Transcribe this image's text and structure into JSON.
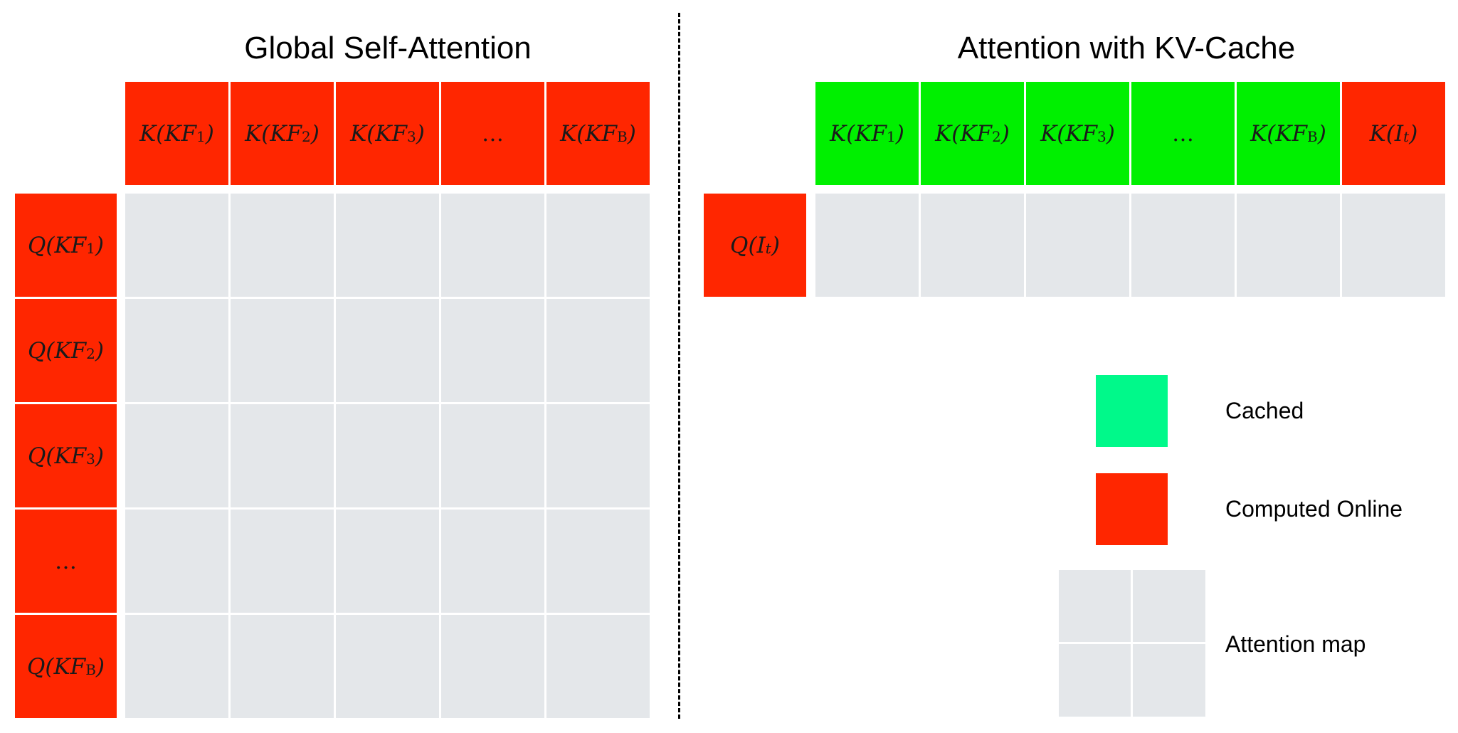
{
  "colors": {
    "computed_online": "#ff2600",
    "cached_key": "#00f000",
    "cached_legend": "#00f98a",
    "attention_map": "#e4e7ea"
  },
  "left_panel": {
    "title": "Global Self-Attention",
    "key_headers": [
      {
        "pre": "K(KF",
        "sub": "1",
        "post": ")"
      },
      {
        "pre": "K(KF",
        "sub": "2",
        "post": ")"
      },
      {
        "pre": "K(KF",
        "sub": "3",
        "post": ")"
      },
      {
        "pre": "…",
        "sub": "",
        "post": ""
      },
      {
        "pre": "K(KF",
        "sub": "B",
        "post": ")"
      }
    ],
    "query_headers": [
      {
        "pre": "Q(KF",
        "sub": "1",
        "post": ")"
      },
      {
        "pre": "Q(KF",
        "sub": "2",
        "post": ")"
      },
      {
        "pre": "Q(KF",
        "sub": "3",
        "post": ")"
      },
      {
        "pre": "…",
        "sub": "",
        "post": ""
      },
      {
        "pre": "Q(KF",
        "sub": "B",
        "post": ")"
      }
    ]
  },
  "right_panel": {
    "title": "Attention with KV-Cache",
    "key_headers": [
      {
        "pre": "K(KF",
        "sub": "1",
        "post": ")",
        "state": "cached"
      },
      {
        "pre": "K(KF",
        "sub": "2",
        "post": ")",
        "state": "cached"
      },
      {
        "pre": "K(KF",
        "sub": "3",
        "post": ")",
        "state": "cached"
      },
      {
        "pre": "…",
        "sub": "",
        "post": "",
        "state": "cached"
      },
      {
        "pre": "K(KF",
        "sub": "B",
        "post": ")",
        "state": "cached"
      },
      {
        "pre": "K(I",
        "sub": "t",
        "post": ")",
        "state": "online"
      }
    ],
    "query_header": {
      "pre": "Q(I",
      "sub": "t",
      "post": ")"
    }
  },
  "legend": [
    {
      "label": "Cached",
      "swatch": "cached"
    },
    {
      "label": "Computed Online",
      "swatch": "online"
    },
    {
      "label": "Attention map",
      "swatch": "map"
    }
  ]
}
